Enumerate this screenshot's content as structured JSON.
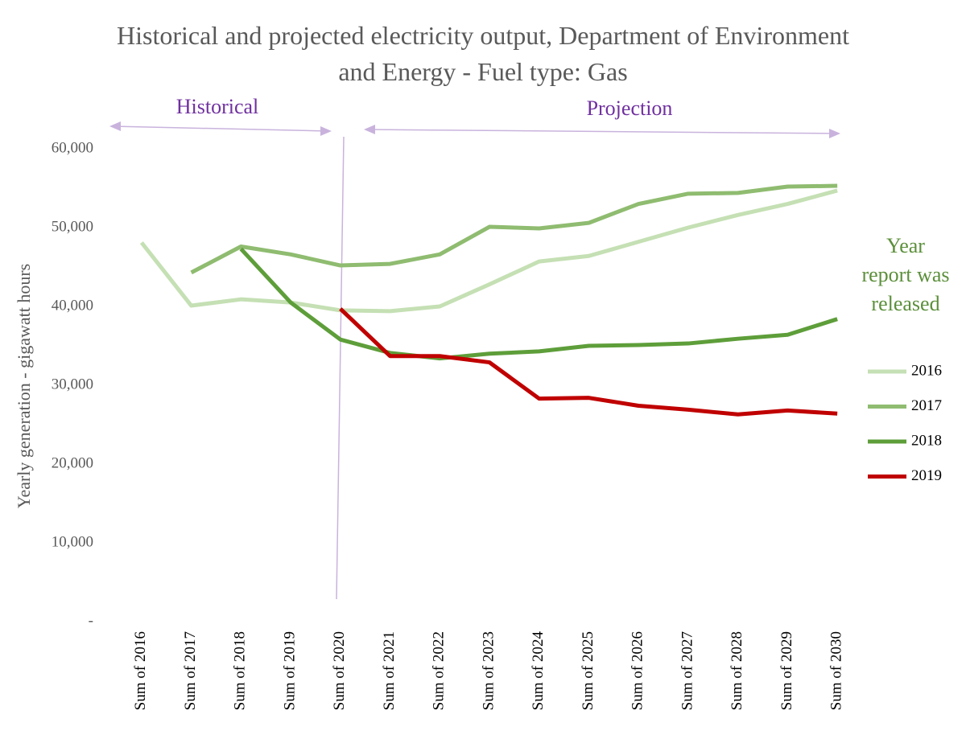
{
  "chart_data": {
    "type": "line",
    "title": "Historical and projected electricity output, Department of Environment and Energy - Fuel type: Gas",
    "y_label": "Yearly generation - gigawatt hours",
    "annotations": [
      "Historical",
      "Projection"
    ],
    "legend_title": "Year report was released",
    "legend": "right",
    "categories": [
      "Sum of 2016",
      "Sum of 2017",
      "Sum of 2018",
      "Sum of 2019",
      "Sum of 2020",
      "Sum of 2021",
      "Sum of 2022",
      "Sum of 2023",
      "Sum of 2024",
      "Sum of 2025",
      "Sum of 2026",
      "Sum of 2027",
      "Sum of 2028",
      "Sum of 2029",
      "Sum of 2030"
    ],
    "series": [
      {
        "name": "2016",
        "color": "#c5e0b4",
        "values": [
          48100,
          40100,
          40900,
          40500,
          39500,
          39400,
          40000,
          42800,
          45700,
          46400,
          48200,
          50000,
          51600,
          53000,
          54700
        ]
      },
      {
        "name": "2017",
        "color": "#8fbc70",
        "values": [
          null,
          44300,
          47600,
          46600,
          45200,
          45400,
          46600,
          50100,
          49900,
          50600,
          53000,
          54300,
          54400,
          55200,
          55300
        ]
      },
      {
        "name": "2018",
        "color": "#5e9e3a",
        "values": [
          null,
          null,
          47300,
          40500,
          35800,
          34100,
          33400,
          34000,
          34300,
          35000,
          35100,
          35300,
          35900,
          36400,
          38400
        ]
      },
      {
        "name": "2019",
        "color": "#c00000",
        "values": [
          null,
          null,
          null,
          null,
          39700,
          33700,
          33700,
          32900,
          28300,
          28400,
          27400,
          26900,
          26300,
          26800,
          26400
        ]
      }
    ],
    "ylim": [
      0,
      60000
    ],
    "yticks": [
      {
        "value": 0,
        "label": "-"
      },
      {
        "value": 10000,
        "label": "10,000"
      },
      {
        "value": 20000,
        "label": "20,000"
      },
      {
        "value": 30000,
        "label": "30,000"
      },
      {
        "value": 40000,
        "label": "40,000"
      },
      {
        "value": 50000,
        "label": "50,000"
      },
      {
        "value": 60000,
        "label": "60,000"
      }
    ],
    "grid": false
  }
}
